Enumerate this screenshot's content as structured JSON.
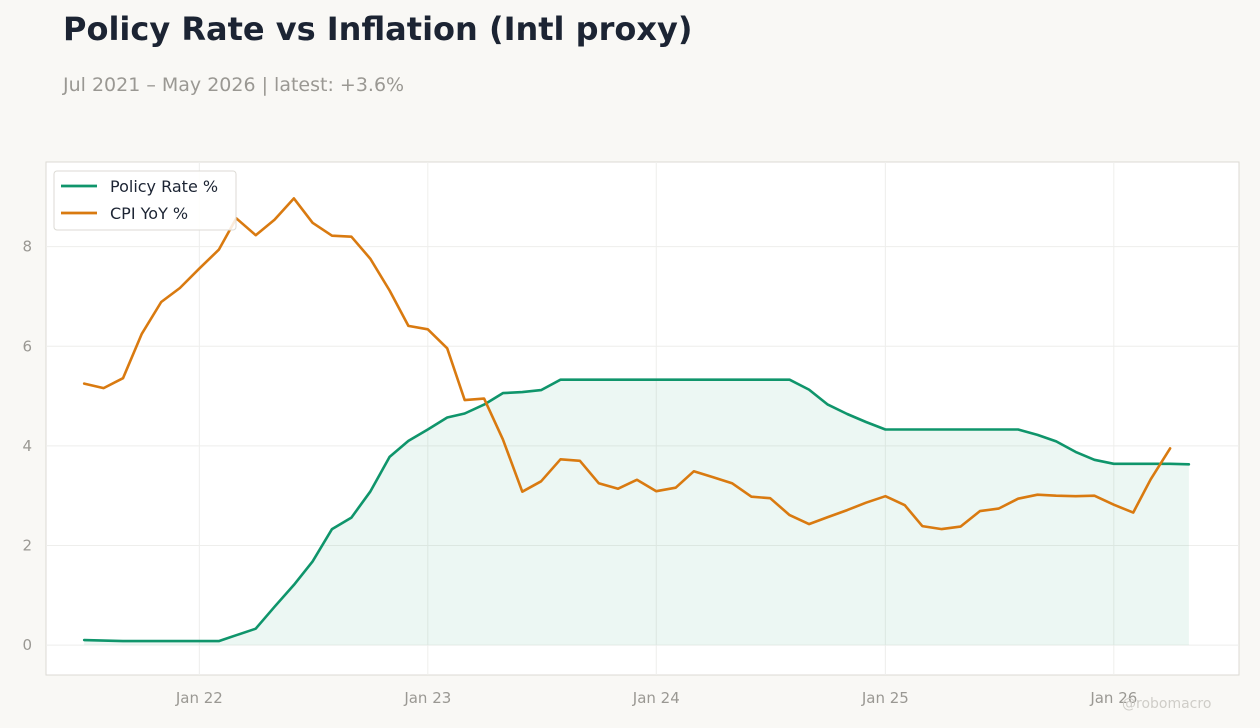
{
  "header": {
    "title": "Policy Rate vs Inflation (Intl proxy)",
    "subtitle": "Jul 2021 – May 2026 | latest: +3.6%"
  },
  "watermark": "@robomacro",
  "colors": {
    "policy": "#0f956b",
    "cpi": "#d97a10",
    "background": "#f9f8f5",
    "plot_background": "#ffffff",
    "grid": "#eeeeec",
    "axis_text": "#9a9893",
    "title_text": "#1c2433"
  },
  "chart_data": {
    "type": "line",
    "title": "Policy Rate vs Inflation (Intl proxy)",
    "subtitle": "Jul 2021 – May 2026 | latest: +3.6%",
    "xlabel": "",
    "ylabel": "",
    "x_range": [
      "2021-05-01",
      "2026-07-20"
    ],
    "ylim": [
      -0.6,
      9.7
    ],
    "yticks": [
      0,
      2,
      4,
      6,
      8
    ],
    "xticks": [
      {
        "date": "2022-01-01",
        "label": "Jan 22"
      },
      {
        "date": "2023-01-01",
        "label": "Jan 23"
      },
      {
        "date": "2024-01-01",
        "label": "Jan 24"
      },
      {
        "date": "2025-01-01",
        "label": "Jan 25"
      },
      {
        "date": "2026-01-01",
        "label": "Jan 26"
      }
    ],
    "grid": true,
    "legend_position": "top-left",
    "series": [
      {
        "name": "Policy Rate %",
        "color": "#0f956b",
        "fill": true,
        "x": [
          "2021-07-01",
          "2021-08-01",
          "2021-09-01",
          "2021-10-01",
          "2021-11-01",
          "2021-12-01",
          "2022-01-01",
          "2022-02-01",
          "2022-03-01",
          "2022-04-01",
          "2022-05-01",
          "2022-06-01",
          "2022-07-01",
          "2022-08-01",
          "2022-09-01",
          "2022-10-01",
          "2022-11-01",
          "2022-12-01",
          "2023-01-01",
          "2023-02-01",
          "2023-03-01",
          "2023-04-01",
          "2023-05-01",
          "2023-06-01",
          "2023-07-01",
          "2023-08-01",
          "2023-09-01",
          "2023-10-01",
          "2023-11-01",
          "2023-12-01",
          "2024-01-01",
          "2024-02-01",
          "2024-03-01",
          "2024-04-01",
          "2024-05-01",
          "2024-06-01",
          "2024-07-01",
          "2024-08-01",
          "2024-09-01",
          "2024-10-01",
          "2024-11-01",
          "2024-12-01",
          "2025-01-01",
          "2025-02-01",
          "2025-03-01",
          "2025-04-01",
          "2025-05-01",
          "2025-06-01",
          "2025-07-01",
          "2025-08-01",
          "2025-09-01",
          "2025-10-01",
          "2025-11-01",
          "2025-12-01",
          "2026-01-01",
          "2026-02-01",
          "2026-03-01",
          "2026-04-01",
          "2026-05-01"
        ],
        "values": [
          0.1,
          0.09,
          0.08,
          0.08,
          0.08,
          0.08,
          0.08,
          0.08,
          0.2,
          0.33,
          0.77,
          1.21,
          1.68,
          2.33,
          2.56,
          3.08,
          3.78,
          4.1,
          4.33,
          4.57,
          4.65,
          4.83,
          5.06,
          5.08,
          5.12,
          5.33,
          5.33,
          5.33,
          5.33,
          5.33,
          5.33,
          5.33,
          5.33,
          5.33,
          5.33,
          5.33,
          5.33,
          5.33,
          5.13,
          4.83,
          4.64,
          4.48,
          4.33,
          4.33,
          4.33,
          4.33,
          4.33,
          4.33,
          4.33,
          4.33,
          4.22,
          4.09,
          3.88,
          3.72,
          3.64,
          3.64,
          3.64,
          3.64,
          3.63
        ]
      },
      {
        "name": "CPI YoY %",
        "color": "#d97a10",
        "fill": false,
        "x": [
          "2021-07-01",
          "2021-08-01",
          "2021-09-01",
          "2021-10-01",
          "2021-11-01",
          "2021-12-01",
          "2022-01-01",
          "2022-02-01",
          "2022-03-01",
          "2022-04-01",
          "2022-05-01",
          "2022-06-01",
          "2022-07-01",
          "2022-08-01",
          "2022-09-01",
          "2022-10-01",
          "2022-11-01",
          "2022-12-01",
          "2023-01-01",
          "2023-02-01",
          "2023-03-01",
          "2023-04-01",
          "2023-05-01",
          "2023-06-01",
          "2023-07-01",
          "2023-08-01",
          "2023-09-01",
          "2023-10-01",
          "2023-11-01",
          "2023-12-01",
          "2024-01-01",
          "2024-02-01",
          "2024-03-01",
          "2024-04-01",
          "2024-05-01",
          "2024-06-01",
          "2024-07-01",
          "2024-08-01",
          "2024-09-01",
          "2024-10-01",
          "2024-11-01",
          "2024-12-01",
          "2025-01-01",
          "2025-02-01",
          "2025-03-01",
          "2025-04-01",
          "2025-05-01",
          "2025-06-01",
          "2025-07-01",
          "2025-08-01",
          "2025-09-01",
          "2025-10-01",
          "2025-11-01",
          "2025-12-01",
          "2026-01-01",
          "2026-02-01",
          "2026-03-01",
          "2026-04-01"
        ],
        "values": [
          5.25,
          5.16,
          5.36,
          6.25,
          6.89,
          7.17,
          7.56,
          7.94,
          8.57,
          8.23,
          8.54,
          8.97,
          8.48,
          8.22,
          8.2,
          7.76,
          7.12,
          6.41,
          6.34,
          5.96,
          4.92,
          4.95,
          4.13,
          3.08,
          3.29,
          3.73,
          3.7,
          3.25,
          3.14,
          3.32,
          3.09,
          3.16,
          3.49,
          3.37,
          3.25,
          2.98,
          2.95,
          2.61,
          2.43,
          2.57,
          2.71,
          2.86,
          2.99,
          2.81,
          2.39,
          2.33,
          2.38,
          2.69,
          2.74,
          2.94,
          3.02,
          3.0,
          2.99,
          3.0,
          2.82,
          2.66,
          3.33,
          3.95
        ]
      }
    ]
  }
}
